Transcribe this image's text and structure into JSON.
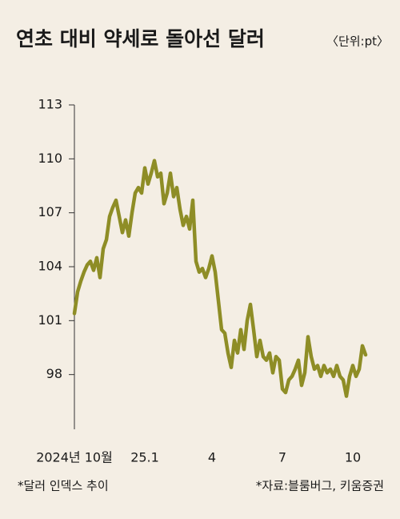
{
  "chart_data": {
    "type": "line",
    "title": "연초 대비 약세로 돌아선 달러",
    "unit": "〈단위:pt〉",
    "note": "*달러 인덱스 추이",
    "source": "*자료:블룸버그, 키움증권",
    "color": "#8e8d26",
    "categories": [
      "2024년 10월",
      null,
      null,
      null,
      null,
      null,
      null,
      null,
      null,
      null,
      null,
      null,
      null,
      null,
      null,
      null,
      null,
      null,
      null,
      null,
      null,
      null,
      "25.1",
      null,
      null,
      null,
      null,
      null,
      null,
      null,
      null,
      null,
      null,
      null,
      null,
      null,
      null,
      null,
      null,
      null,
      null,
      null,
      null,
      "4",
      null,
      null,
      null,
      null,
      null,
      null,
      null,
      null,
      null,
      null,
      null,
      null,
      null,
      null,
      null,
      null,
      null,
      null,
      null,
      null,
      null,
      "7",
      null,
      null,
      null,
      null,
      null,
      null,
      null,
      null,
      null,
      null,
      null,
      null,
      null,
      null,
      null,
      null,
      null,
      null,
      null,
      null,
      null,
      "10",
      null,
      null,
      null,
      null
    ],
    "values": [
      101.4,
      102.6,
      103.2,
      103.7,
      104.1,
      104.3,
      103.8,
      104.5,
      103.4,
      105.0,
      105.5,
      106.8,
      107.3,
      107.7,
      106.8,
      105.9,
      106.6,
      105.7,
      107,
      108.1,
      108.4,
      108.1,
      109.5,
      108.6,
      109.2,
      109.9,
      109,
      109.2,
      107.5,
      108.1,
      109.2,
      107.9,
      108.4,
      107.2,
      106.3,
      106.8,
      106.1,
      107.7,
      104.3,
      103.7,
      103.9,
      103.4,
      103.9,
      104.6,
      103.7,
      102.1,
      100.5,
      100.3,
      99.2,
      98.4,
      99.9,
      99.2,
      100.5,
      99.4,
      101,
      101.9,
      100.5,
      99,
      99.9,
      99,
      98.8,
      99.2,
      98.1,
      99,
      98.8,
      97.2,
      97,
      97.7,
      97.9,
      98.3,
      98.8,
      97.4,
      98.1,
      100.1,
      99,
      98.3,
      98.5,
      97.9,
      98.5,
      98.1,
      98.3,
      97.9,
      98.5,
      97.9,
      97.7,
      96.8,
      97.9,
      98.5,
      97.9,
      98.3,
      99.6,
      99.1
    ],
    "ylim": [
      95,
      113
    ],
    "yticks": [
      98,
      101,
      104,
      107,
      110,
      113
    ]
  }
}
